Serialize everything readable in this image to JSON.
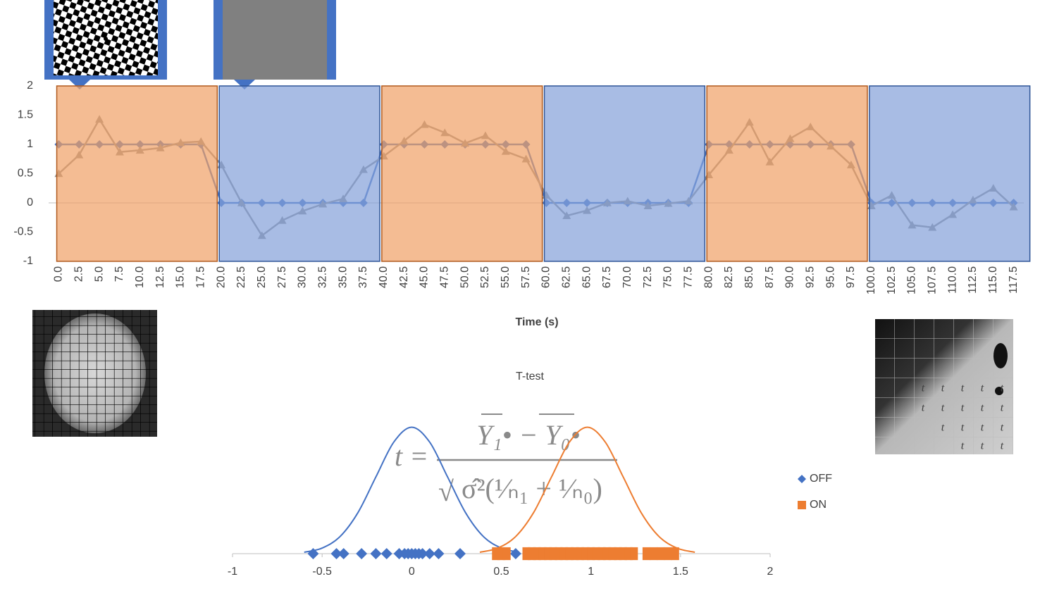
{
  "chart_data": [
    {
      "type": "line",
      "categories": [
        "0.0",
        "2.5",
        "5.0",
        "7.5",
        "10.0",
        "12.5",
        "15.0",
        "17.5",
        "20.0",
        "22.5",
        "25.0",
        "27.5",
        "30.0",
        "32.5",
        "35.0",
        "37.5",
        "40.0",
        "42.5",
        "45.0",
        "47.5",
        "50.0",
        "52.5",
        "55.0",
        "57.5",
        "60.0",
        "62.5",
        "65.0",
        "67.5",
        "70.0",
        "72.5",
        "75.0",
        "77.5",
        "80.0",
        "82.5",
        "85.0",
        "87.5",
        "90.0",
        "92.5",
        "95.0",
        "97.5",
        "100.0",
        "102.5",
        "105.0",
        "107.5",
        "110.0",
        "112.5",
        "115.0",
        "117.5"
      ],
      "series": [
        {
          "color": "#4472c4",
          "marker": "diamond",
          "values": [
            1,
            1,
            1,
            1,
            1,
            1,
            1,
            1,
            0,
            0,
            0,
            0,
            0,
            0,
            0,
            0,
            1,
            1,
            1,
            1,
            1,
            1,
            1,
            1,
            0,
            0,
            0,
            0,
            0,
            0,
            0,
            0,
            1,
            1,
            1,
            1,
            1,
            1,
            1,
            1,
            0,
            0,
            0,
            0,
            0,
            0,
            0,
            0
          ]
        },
        {
          "color": "#8f8f8f",
          "marker": "triangle",
          "values": [
            0.5,
            0.82,
            1.43,
            0.87,
            0.9,
            0.94,
            1.03,
            1.05,
            0.65,
            0.0,
            -0.56,
            -0.3,
            -0.14,
            -0.02,
            0.07,
            0.57,
            0.8,
            1.06,
            1.34,
            1.2,
            1.02,
            1.15,
            0.88,
            0.75,
            0.13,
            -0.22,
            -0.13,
            0.0,
            0.03,
            -0.05,
            -0.01,
            0.03,
            0.48,
            0.9,
            1.38,
            0.7,
            1.1,
            1.3,
            0.97,
            0.65,
            -0.05,
            0.13,
            -0.38,
            -0.42,
            -0.2,
            0.05,
            0.25,
            -0.07
          ]
        }
      ],
      "ylim": [
        -1,
        2
      ],
      "yticks": [
        -1,
        -0.5,
        0,
        0.5,
        1,
        1.5,
        2
      ],
      "x_label": "Time (s)",
      "block_colors": {
        "on": "#f09f65",
        "off": "#839fd9"
      },
      "block_borders": {
        "on": "#b05a1e",
        "off": "#2f5597"
      }
    },
    {
      "type": "scatter",
      "title": "T-test",
      "xlim": [
        -1,
        2
      ],
      "xticks": [
        -1,
        -0.5,
        0,
        0.5,
        1,
        1.5,
        2
      ],
      "ylim": [
        0,
        2.2
      ],
      "legend": "right",
      "series": [
        {
          "name": "OFF",
          "type": "scatter",
          "marker": "diamond",
          "color": "#4472c4",
          "x": [
            -0.55,
            -0.42,
            -0.38,
            -0.28,
            -0.2,
            -0.14,
            -0.07,
            -0.04,
            -0.02,
            0,
            0.02,
            0.04,
            0.06,
            0.1,
            0.15,
            0.27,
            0.58
          ],
          "values": [
            0,
            0,
            0,
            0,
            0,
            0,
            0,
            0,
            0,
            0,
            0,
            0,
            0,
            0,
            0,
            0,
            0
          ]
        },
        {
          "name": "ON",
          "type": "scatter",
          "marker": "square",
          "color": "#ed7d31",
          "x": [
            0.47,
            0.5,
            0.53,
            0.64,
            0.67,
            0.7,
            0.73,
            0.76,
            0.79,
            0.82,
            0.85,
            0.88,
            0.91,
            0.94,
            0.97,
            1.0,
            1.03,
            1.06,
            1.09,
            1.12,
            1.15,
            1.18,
            1.21,
            1.24,
            1.31,
            1.35,
            1.39,
            1.43,
            1.47
          ],
          "values": [
            0,
            0,
            0,
            0,
            0,
            0,
            0,
            0,
            0,
            0,
            0,
            0,
            0,
            0,
            0,
            0,
            0,
            0,
            0,
            0,
            0,
            0,
            0,
            0,
            0,
            0,
            0,
            0,
            0
          ]
        },
        {
          "type": "curve",
          "color": "#4472c4",
          "x": [
            -0.6,
            -0.5,
            -0.4,
            -0.3,
            -0.2,
            -0.1,
            0,
            0.1,
            0.2,
            0.3,
            0.4,
            0.5,
            0.6
          ],
          "values": [
            0.022,
            0.088,
            0.27,
            0.648,
            1.21,
            1.76,
            1.995,
            1.76,
            1.21,
            0.648,
            0.27,
            0.088,
            0.022
          ]
        },
        {
          "type": "curve",
          "color": "#ed7d31",
          "x": [
            0.38,
            0.48,
            0.58,
            0.68,
            0.78,
            0.88,
            0.98,
            1.08,
            1.18,
            1.28,
            1.38,
            1.48,
            1.58
          ],
          "values": [
            0.022,
            0.088,
            0.27,
            0.648,
            1.21,
            1.76,
            1.995,
            1.76,
            1.21,
            0.648,
            0.27,
            0.088,
            0.022
          ]
        }
      ]
    }
  ],
  "formula": {
    "lhs": "t =",
    "numerator": "Y₁• − Y₀•",
    "radical": "√",
    "denominator": "σ̂²(¹⁄ₙ₁ + ¹⁄ₙ₀)"
  },
  "zoom_cell_label": "t"
}
